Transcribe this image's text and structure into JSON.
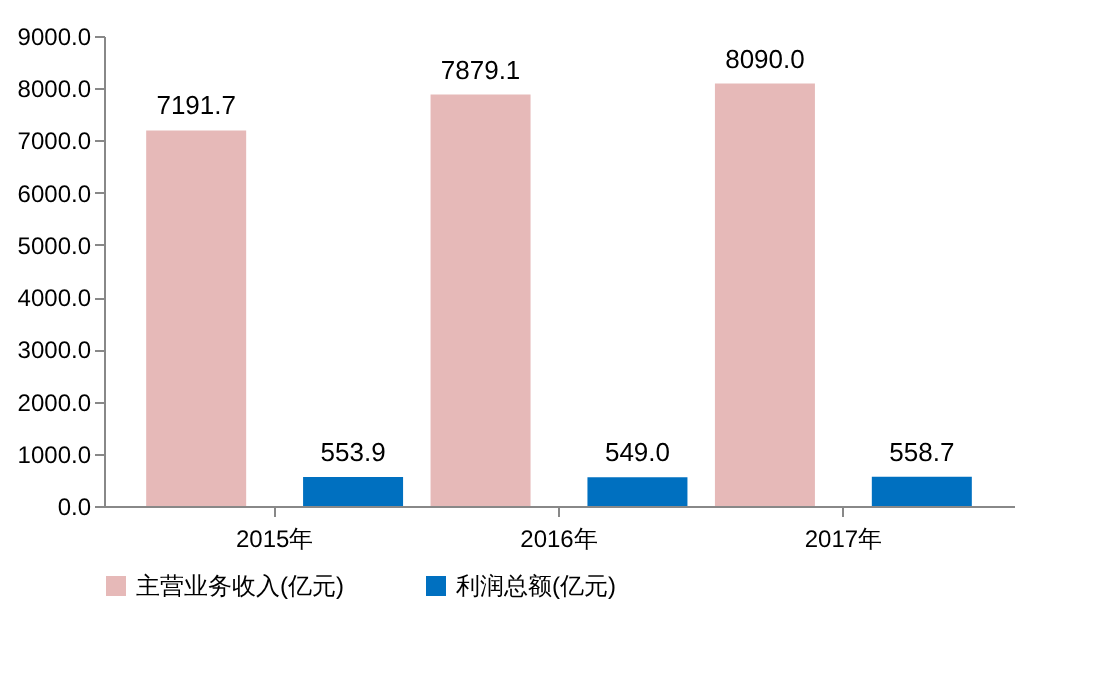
{
  "chart_data": {
    "type": "bar",
    "categories": [
      "2015年",
      "2016年",
      "2017年"
    ],
    "series": [
      {
        "name": "主营业务收入(亿元)",
        "color": "#e6b9b8",
        "values": [
          7191.7,
          7879.1,
          8090.0
        ],
        "value_labels": [
          "7191.7",
          "7879.1",
          "8090.0"
        ]
      },
      {
        "name": "利润总额(亿元)",
        "color": "#0070c0",
        "values": [
          553.9,
          549.0,
          558.7
        ],
        "value_labels": [
          "553.9",
          "549.0",
          "558.7"
        ]
      }
    ],
    "ylim": [
      0,
      9000
    ],
    "yticks": [
      {
        "value": 0,
        "label": "0.0"
      },
      {
        "value": 1000,
        "label": "1000.0"
      },
      {
        "value": 2000,
        "label": "2000.0"
      },
      {
        "value": 3000,
        "label": "3000.0"
      },
      {
        "value": 4000,
        "label": "4000.0"
      },
      {
        "value": 5000,
        "label": "5000.0"
      },
      {
        "value": 6000,
        "label": "6000.0"
      },
      {
        "value": 7000,
        "label": "7000.0"
      },
      {
        "value": 8000,
        "label": "8000.0"
      },
      {
        "value": 9000,
        "label": "9000.0"
      }
    ],
    "grid": false,
    "legend": "bottom"
  }
}
